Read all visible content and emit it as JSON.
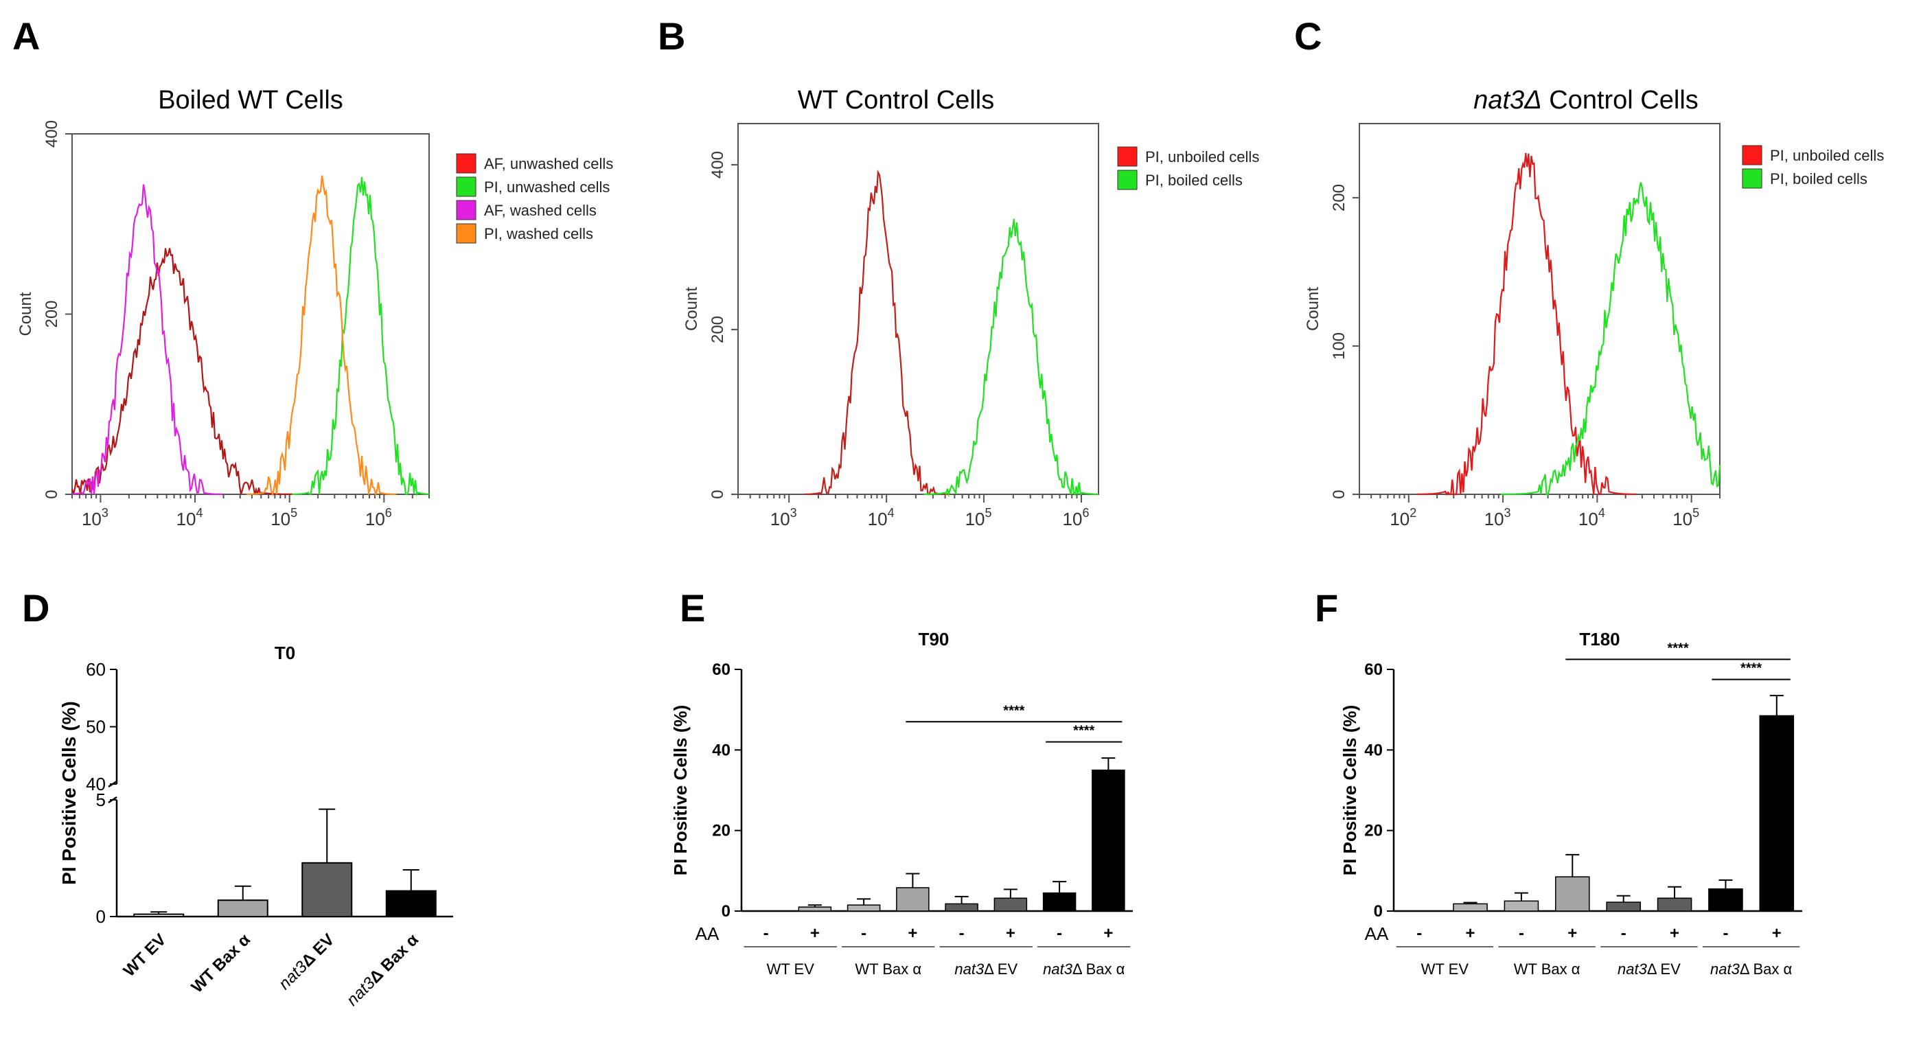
{
  "colors": {
    "red": "#ff1a1a",
    "dark_red": "#b01818",
    "green": "#22e022",
    "magenta": "#e020e0",
    "orange": "#ff8a1a",
    "light_gray": "#b5b5b5",
    "mid_gray": "#a5a5a5",
    "dark_gray": "#5e5e5e",
    "black": "#000000",
    "white": "#ffffff"
  },
  "chart_data": [
    {
      "panel": "A",
      "type": "line",
      "title": "Boiled WT Cells",
      "xlabel": "",
      "ylabel": "Count",
      "x_scale": "log10",
      "xlim": [
        500,
        3000000
      ],
      "ylim": [
        0,
        400
      ],
      "yticks": [
        "0",
        "200",
        "400"
      ],
      "xticks": [
        "10",
        "10",
        "10",
        "10"
      ],
      "xtick_exps": [
        "3",
        "4",
        "5",
        "6"
      ],
      "legend": [
        {
          "label": "AF, unwashed cells",
          "color": "#ff1a1a"
        },
        {
          "label": "PI, unwashed cells",
          "color": "#22e022"
        },
        {
          "label": "AF, washed cells",
          "color": "#e020e0"
        },
        {
          "label": "PI, washed cells",
          "color": "#ff8a1a"
        }
      ],
      "series": [
        {
          "name": "AF, unwashed cells",
          "color": "#b01818",
          "peak_x": 5000,
          "peak_y": 265,
          "width": 0.32
        },
        {
          "name": "PI, unwashed cells",
          "color": "#22e022",
          "peak_x": 600000,
          "peak_y": 345,
          "width": 0.18
        },
        {
          "name": "AF, washed cells",
          "color": "#e020e0",
          "peak_x": 2800,
          "peak_y": 330,
          "width": 0.2
        },
        {
          "name": "PI, washed cells",
          "color": "#ff8a1a",
          "peak_x": 220000,
          "peak_y": 340,
          "width": 0.19
        }
      ]
    },
    {
      "panel": "B",
      "type": "line",
      "title": "WT Control Cells",
      "xlabel": "",
      "ylabel": "Count",
      "x_scale": "log10",
      "xlim": [
        300,
        1500000
      ],
      "ylim": [
        0,
        450
      ],
      "yticks": [
        "0",
        "200",
        "400"
      ],
      "xticks": [
        "10",
        "10",
        "10",
        "10"
      ],
      "xtick_exps": [
        "3",
        "4",
        "5",
        "6"
      ],
      "legend": [
        {
          "label": "PI, unboiled cells",
          "color": "#ff1a1a"
        },
        {
          "label": "PI, boiled cells",
          "color": "#22e022"
        }
      ],
      "series": [
        {
          "name": "PI, unboiled cells",
          "color": "#c0201c",
          "peak_x": 8000,
          "peak_y": 375,
          "width": 0.18
        },
        {
          "name": "PI, boiled cells",
          "color": "#22e022",
          "peak_x": 200000,
          "peak_y": 320,
          "width": 0.22
        }
      ]
    },
    {
      "panel": "C",
      "type": "line",
      "title": "nat3Δ Control Cells",
      "xlabel": "",
      "ylabel": "Count",
      "x_scale": "log10",
      "xlim": [
        30,
        200000
      ],
      "ylim": [
        0,
        250
      ],
      "yticks": [
        "0",
        "100",
        "200"
      ],
      "xticks": [
        "10",
        "10",
        "10",
        "10"
      ],
      "xtick_exps": [
        "2",
        "3",
        "4",
        "5"
      ],
      "legend": [
        {
          "label": "PI, unboiled cells",
          "color": "#ff1a1a"
        },
        {
          "label": "PI, boiled cells",
          "color": "#22e022"
        }
      ],
      "series": [
        {
          "name": "PI, unboiled cells",
          "color": "#e01a1a",
          "peak_x": 1800,
          "peak_y": 220,
          "width": 0.28
        },
        {
          "name": "PI, boiled cells",
          "color": "#22e022",
          "peak_x": 28000,
          "peak_y": 200,
          "width": 0.35
        }
      ]
    },
    {
      "panel": "D",
      "type": "bar",
      "title": "T0",
      "xlabel": "",
      "ylabel": "PI Positive Cells (%)",
      "y_break": true,
      "ylim_lower": [
        0,
        5
      ],
      "ylim_upper": [
        40,
        60
      ],
      "yticks_lower": [
        "0",
        "5"
      ],
      "yticks_upper": [
        "40",
        "50",
        "60"
      ],
      "categories": [
        "WT EV",
        "WT Bax α",
        "nat3Δ EV",
        "nat3Δ Bax α"
      ],
      "values": [
        0.1,
        0.7,
        2.3,
        1.1
      ],
      "errors": [
        0.1,
        0.6,
        2.3,
        0.9
      ],
      "bar_colors": [
        "#ffffff",
        "#a5a5a5",
        "#5e5e5e",
        "#000000"
      ]
    },
    {
      "panel": "E",
      "type": "bar",
      "title": "T90",
      "xlabel": "",
      "ylabel": "PI Positive Cells (%)",
      "ylim": [
        0,
        60
      ],
      "yticks": [
        "0",
        "20",
        "40",
        "60"
      ],
      "row_label": "AA",
      "aa_signs": [
        "-",
        "+",
        "-",
        "+",
        "-",
        "+",
        "-",
        "+"
      ],
      "groups": [
        "WT EV",
        "WT Bax α",
        "nat3Δ EV",
        "nat3Δ Bax α"
      ],
      "values": [
        0,
        1.0,
        1.5,
        5.8,
        1.8,
        3.2,
        4.5,
        35
      ],
      "errors": [
        0,
        0.5,
        1.5,
        3.5,
        1.8,
        2.2,
        2.8,
        3.0
      ],
      "bar_colors": [
        "#ffffff",
        "#b5b5b5",
        "#b5b5b5",
        "#a5a5a5",
        "#5e5e5e",
        "#5e5e5e",
        "#000000",
        "#000000"
      ],
      "significance": [
        {
          "from_bar": 3,
          "to_bar": 7,
          "label": "****"
        },
        {
          "from_bar": 6,
          "to_bar": 7,
          "label": "****"
        }
      ]
    },
    {
      "panel": "F",
      "type": "bar",
      "title": "T180",
      "xlabel": "",
      "ylabel": "PI Positive Cells (%)",
      "ylim": [
        0,
        60
      ],
      "yticks": [
        "0",
        "20",
        "40",
        "60"
      ],
      "row_label": "AA",
      "aa_signs": [
        "-",
        "+",
        "-",
        "+",
        "-",
        "+",
        "-",
        "+"
      ],
      "groups": [
        "WT EV",
        "WT Bax α",
        "nat3Δ EV",
        "nat3Δ Bax α"
      ],
      "values": [
        0,
        1.8,
        2.5,
        8.5,
        2.2,
        3.2,
        5.5,
        48.5
      ],
      "errors": [
        0,
        0.3,
        2.0,
        5.5,
        1.6,
        2.8,
        2.2,
        5.0
      ],
      "bar_colors": [
        "#ffffff",
        "#b5b5b5",
        "#b5b5b5",
        "#a5a5a5",
        "#5e5e5e",
        "#5e5e5e",
        "#000000",
        "#000000"
      ],
      "significance": [
        {
          "from_bar": 3,
          "to_bar": 7,
          "label": "****"
        },
        {
          "from_bar": 6,
          "to_bar": 7,
          "label": "****"
        }
      ]
    }
  ]
}
